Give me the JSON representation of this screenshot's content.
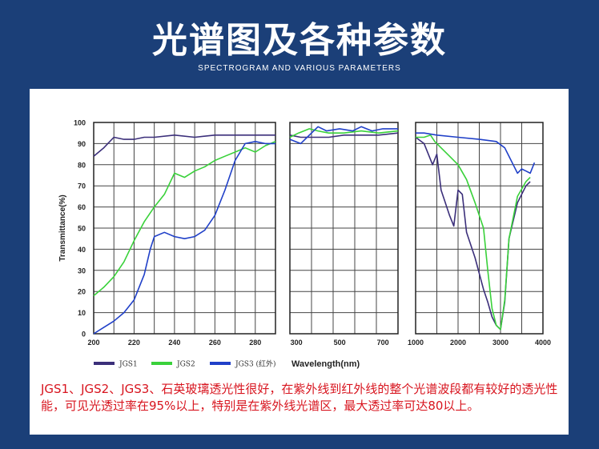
{
  "header": {
    "title": "光谱图及各种参数",
    "subtitle": "SPECTROGRAM AND VARIOUS PARAMETERS"
  },
  "caption": "JGS1、JGS2、JGS3、石英玻璃透光性很好，在紫外线到红外线的整个光谱波段都有较好的透光性能，可见光透过率在95%以上，特别是在紫外线光谱区，最大透过率可达80以上。",
  "colors": {
    "background": "#1b3f78",
    "caption": "#d8151f",
    "jgs1": "#3b2f7a",
    "jgs2": "#39d13a",
    "jgs3": "#2040c8"
  },
  "chart_data": {
    "type": "line",
    "ylabel": "Transmittance(%)",
    "xlabel": "Wavelength(nm)",
    "ylim": [
      0,
      100
    ],
    "yticks": [
      0,
      10,
      20,
      30,
      40,
      50,
      60,
      70,
      80,
      90,
      100
    ],
    "grid": true,
    "legend": [
      {
        "name": "JGS1",
        "color": "#3b2f7a"
      },
      {
        "name": "JGS2",
        "color": "#39d13a"
      },
      {
        "name": "JGS3 (红外)",
        "color": "#2040c8"
      }
    ],
    "panels": [
      {
        "xlim": [
          200,
          290
        ],
        "xticks": [
          200,
          220,
          240,
          260,
          280
        ],
        "series": [
          {
            "name": "JGS1",
            "x": [
              200,
              205,
              210,
              215,
              220,
              225,
              230,
              240,
              250,
              260,
              270,
              280,
              290
            ],
            "y": [
              84,
              88,
              93,
              92,
              92,
              93,
              93,
              94,
              93,
              94,
              94,
              94,
              94
            ]
          },
          {
            "name": "JGS2",
            "x": [
              200,
              205,
              210,
              215,
              220,
              225,
              230,
              235,
              240,
              245,
              250,
              255,
              260,
              265,
              270,
              275,
              280,
              285,
              290
            ],
            "y": [
              18,
              22,
              27,
              34,
              44,
              53,
              60,
              66,
              76,
              74,
              77,
              79,
              82,
              84,
              86,
              88,
              86,
              89,
              91
            ]
          },
          {
            "name": "JGS3",
            "x": [
              200,
              205,
              210,
              215,
              220,
              225,
              228,
              230,
              235,
              240,
              245,
              250,
              255,
              260,
              265,
              270,
              275,
              280,
              285,
              290
            ],
            "y": [
              0,
              3,
              6,
              10,
              16,
              28,
              40,
              46,
              48,
              46,
              45,
              46,
              49,
              56,
              68,
              82,
              90,
              91,
              90,
              90
            ]
          }
        ]
      },
      {
        "xlim": [
          270,
          770
        ],
        "xticks": [
          300,
          500,
          700
        ],
        "series": [
          {
            "name": "JGS1",
            "x": [
              270,
              320,
              380,
              450,
              520,
              600,
              680,
              770
            ],
            "y": [
              94,
              93,
              93,
              93,
              94,
              94,
              94,
              95
            ]
          },
          {
            "name": "JGS2",
            "x": [
              270,
              310,
              360,
              400,
              450,
              520,
              600,
              680,
              770
            ],
            "y": [
              93,
              95,
              97,
              96,
              95,
              95,
              96,
              95,
              96
            ]
          },
          {
            "name": "JGS3",
            "x": [
              270,
              320,
              360,
              400,
              440,
              500,
              560,
              600,
              650,
              700,
              770
            ],
            "y": [
              92,
              90,
              94,
              98,
              96,
              97,
              96,
              98,
              96,
              97,
              97
            ]
          }
        ]
      },
      {
        "xlim": [
          1000,
          4000
        ],
        "xticks": [
          1000,
          2000,
          3000,
          4000
        ],
        "series": [
          {
            "name": "JGS1",
            "x": [
              1000,
              1200,
              1400,
              1500,
              1600,
              1700,
              1800,
              1900,
              2000,
              2100,
              2200,
              2400,
              2600,
              2700,
              2800,
              2900,
              3000,
              3100,
              3200,
              3400,
              3600,
              3700
            ],
            "y": [
              93,
              90,
              80,
              85,
              68,
              62,
              56,
              51,
              68,
              66,
              48,
              36,
              21,
              15,
              8,
              4,
              2,
              15,
              45,
              62,
              70,
              72
            ]
          },
          {
            "name": "JGS2",
            "x": [
              1000,
              1200,
              1350,
              1450,
              1600,
              1800,
              2000,
              2200,
              2400,
              2600,
              2700,
              2800,
              2900,
              3000,
              3100,
              3200,
              3400,
              3600,
              3700
            ],
            "y": [
              93,
              93,
              94,
              91,
              88,
              84,
              80,
              73,
              62,
              50,
              30,
              12,
              4,
              2,
              16,
              45,
              65,
              72,
              74
            ]
          },
          {
            "name": "JGS3",
            "x": [
              1000,
              1200,
              1500,
              2000,
              2500,
              2900,
              3100,
              3300,
              3400,
              3500,
              3600,
              3700,
              3800
            ],
            "y": [
              95,
              95,
              94,
              93,
              92,
              91,
              88,
              80,
              76,
              78,
              77,
              76,
              81
            ]
          }
        ]
      }
    ]
  }
}
